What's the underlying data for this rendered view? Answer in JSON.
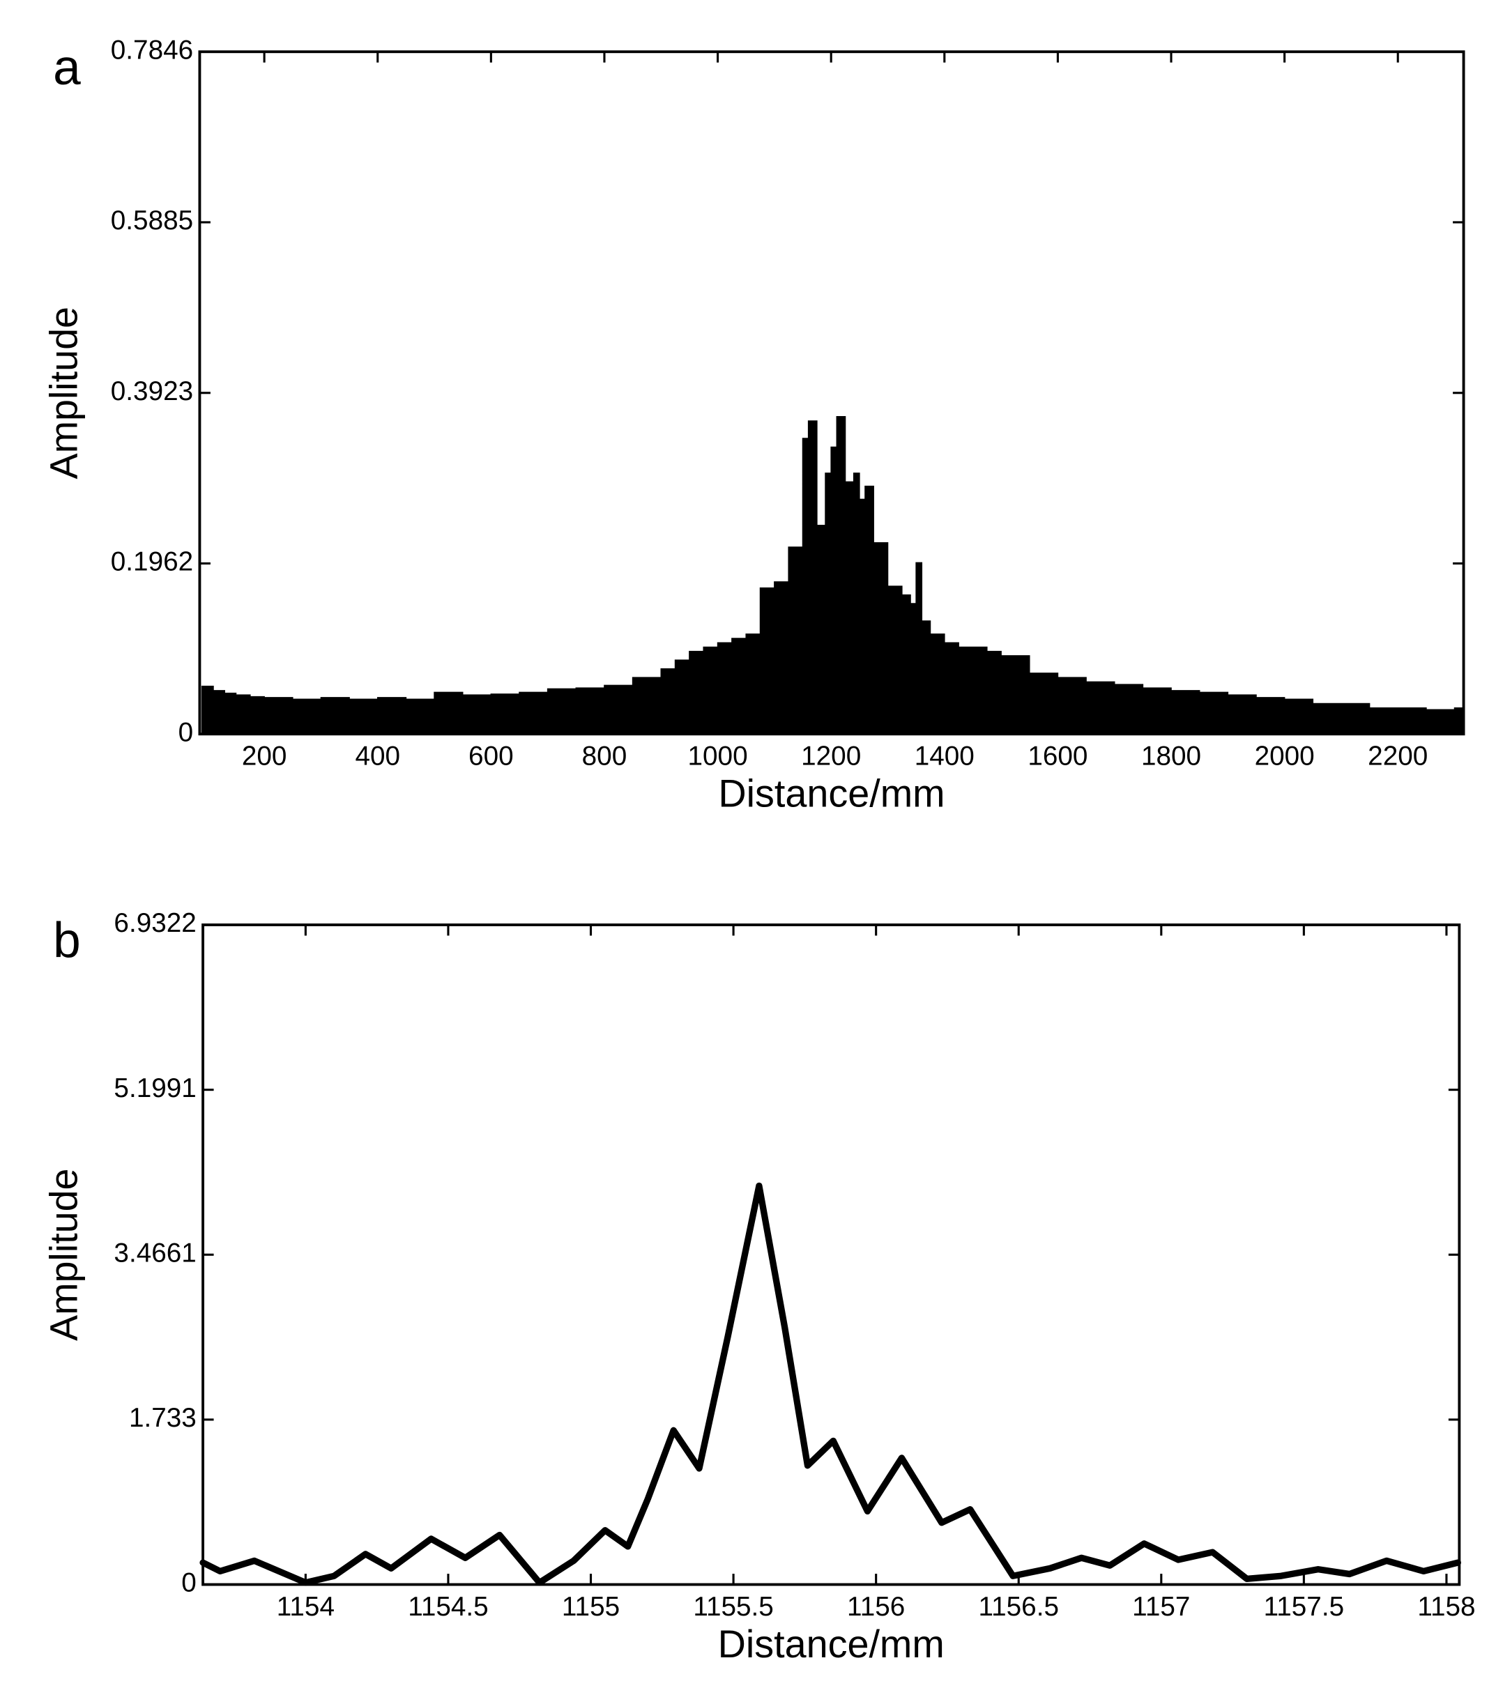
{
  "chart_data": [
    {
      "type": "area",
      "title": "a",
      "xlabel": "Distance/mm",
      "ylabel": "Amplitude",
      "color": "#000000",
      "x": [
        90,
        110,
        130,
        150,
        175,
        200,
        250,
        300,
        350,
        400,
        450,
        500,
        550,
        600,
        650,
        700,
        750,
        800,
        850,
        900,
        925,
        950,
        975,
        1000,
        1025,
        1050,
        1075,
        1100,
        1125,
        1150,
        1160,
        1175,
        1190,
        1200,
        1210,
        1225,
        1240,
        1250,
        1260,
        1275,
        1300,
        1325,
        1340,
        1350,
        1360,
        1375,
        1400,
        1425,
        1450,
        1475,
        1500,
        1550,
        1600,
        1650,
        1700,
        1750,
        1800,
        1850,
        1900,
        1950,
        2000,
        2050,
        2100,
        2150,
        2200,
        2250,
        2300
      ],
      "values": [
        0.055,
        0.05,
        0.047,
        0.045,
        0.043,
        0.042,
        0.04,
        0.042,
        0.04,
        0.042,
        0.04,
        0.048,
        0.045,
        0.046,
        0.048,
        0.052,
        0.053,
        0.056,
        0.065,
        0.075,
        0.085,
        0.095,
        0.1,
        0.105,
        0.11,
        0.115,
        0.168,
        0.175,
        0.215,
        0.34,
        0.36,
        0.24,
        0.3,
        0.33,
        0.365,
        0.29,
        0.3,
        0.27,
        0.285,
        0.22,
        0.17,
        0.16,
        0.15,
        0.197,
        0.13,
        0.115,
        0.105,
        0.1,
        0.1,
        0.095,
        0.09,
        0.07,
        0.065,
        0.06,
        0.057,
        0.053,
        0.05,
        0.048,
        0.045,
        0.042,
        0.04,
        0.035,
        0.035,
        0.03,
        0.03,
        0.028,
        0.03
      ],
      "xlim": [
        86,
        2316
      ],
      "xticks": [
        200,
        400,
        600,
        800,
        1000,
        1200,
        1400,
        1600,
        1800,
        2000,
        2200
      ],
      "ylim": [
        0,
        0.7846
      ],
      "yticks": [
        0,
        0.1962,
        0.3923,
        0.5885,
        0.7846
      ]
    },
    {
      "type": "line",
      "title": "b",
      "xlabel": "Distance/mm",
      "ylabel": "Amplitude",
      "color": "#000000",
      "x": [
        1153.64,
        1153.7,
        1153.82,
        1154.0,
        1154.1,
        1154.21,
        1154.3,
        1154.44,
        1154.56,
        1154.68,
        1154.82,
        1154.94,
        1155.05,
        1155.13,
        1155.2,
        1155.29,
        1155.38,
        1155.48,
        1155.59,
        1155.68,
        1155.76,
        1155.85,
        1155.97,
        1156.09,
        1156.23,
        1156.33,
        1156.48,
        1156.61,
        1156.72,
        1156.82,
        1156.94,
        1157.06,
        1157.18,
        1157.3,
        1157.42,
        1157.55,
        1157.66,
        1157.79,
        1157.92,
        1158.04
      ],
      "values": [
        0.23,
        0.14,
        0.25,
        0.02,
        0.09,
        0.32,
        0.17,
        0.48,
        0.28,
        0.52,
        0.02,
        0.25,
        0.57,
        0.4,
        0.9,
        1.62,
        1.22,
        2.6,
        4.19,
        2.7,
        1.25,
        1.51,
        0.77,
        1.33,
        0.65,
        0.79,
        0.09,
        0.17,
        0.28,
        0.2,
        0.43,
        0.26,
        0.34,
        0.06,
        0.09,
        0.16,
        0.11,
        0.25,
        0.14,
        0.23
      ],
      "xlim": [
        1153.64,
        1158.045
      ],
      "xticks": [
        1154,
        1154.5,
        1155,
        1155.5,
        1156,
        1156.5,
        1157,
        1157.5,
        1158
      ],
      "ylim": [
        0,
        6.9322
      ],
      "yticks": [
        0,
        1.733,
        3.4661,
        5.1991,
        6.9322
      ]
    }
  ]
}
